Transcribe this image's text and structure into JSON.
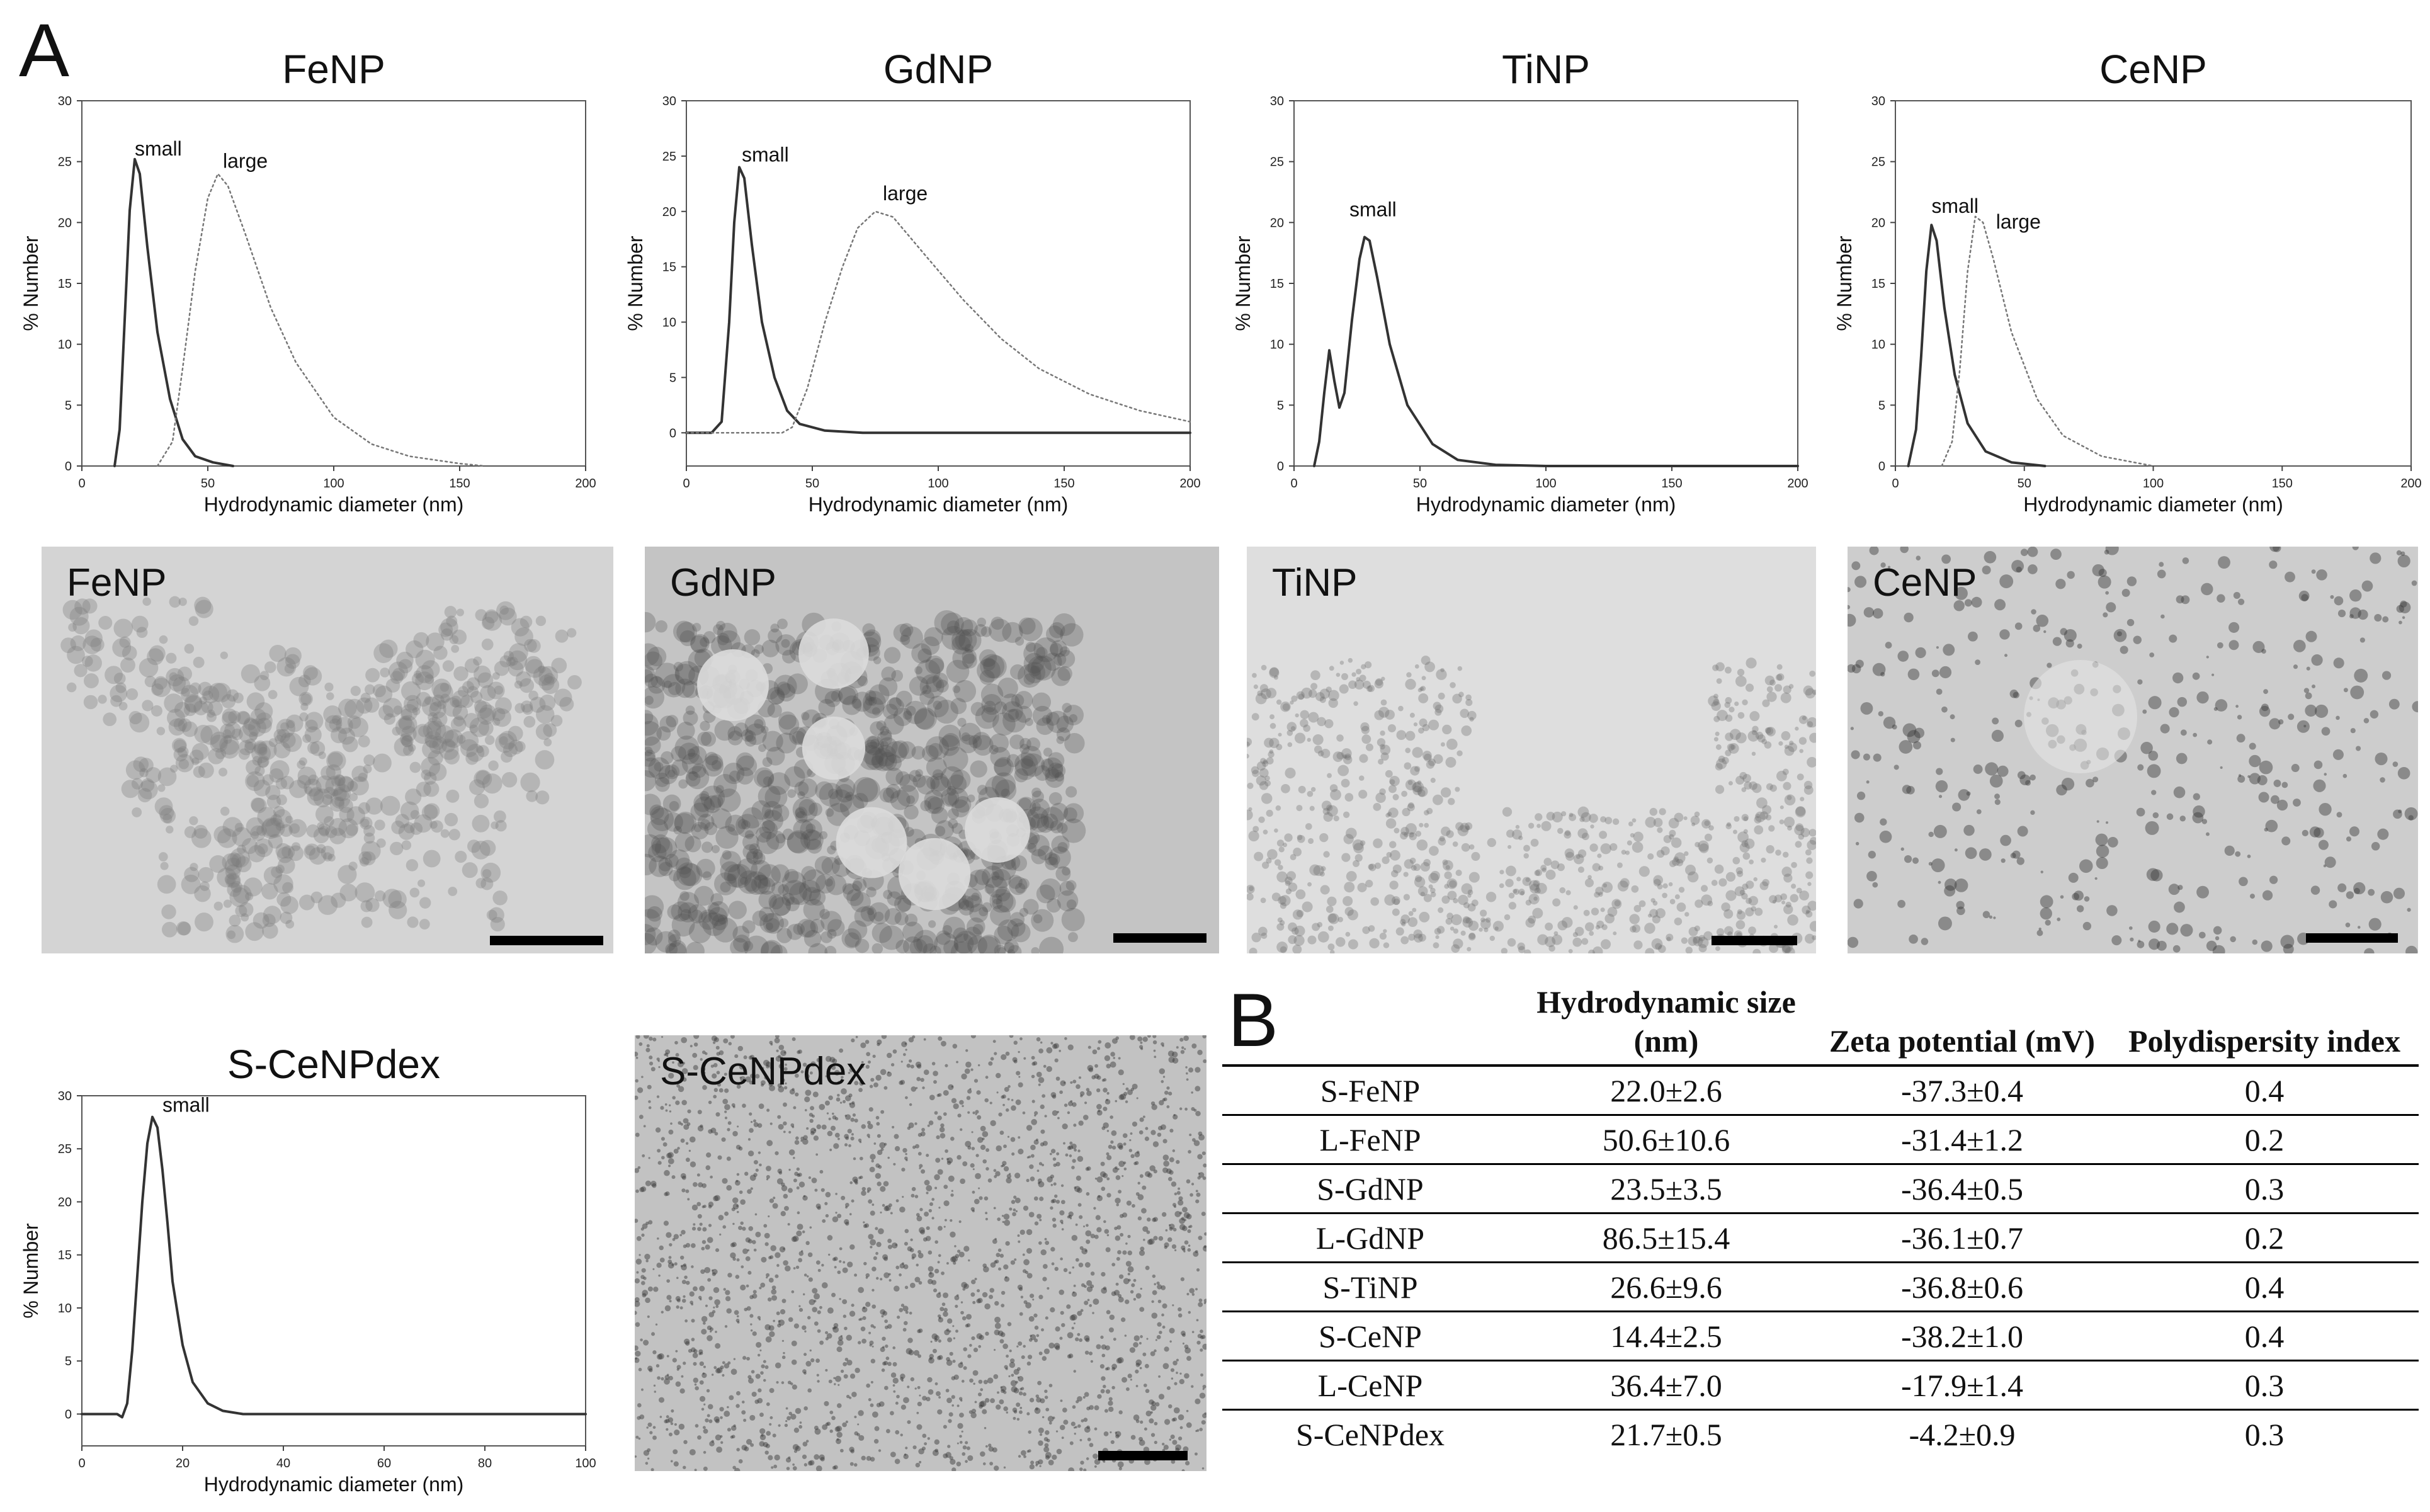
{
  "panel_a_label": "A",
  "panel_b_label": "B",
  "x_axis_label": "Hydrodynamic diameter (nm)",
  "y_axis_label": "% Number",
  "chart_data": [
    {
      "type": "line",
      "title": "FeNP",
      "xlabel": "Hydrodynamic diameter (nm)",
      "ylabel": "% Number",
      "xlim": [
        0,
        200
      ],
      "ylim": [
        0,
        30
      ],
      "x_ticks": [
        0,
        50,
        100,
        150,
        200
      ],
      "y_ticks": [
        0,
        5,
        10,
        15,
        20,
        25,
        30
      ],
      "series": [
        {
          "name": "small",
          "style": "solid",
          "points": [
            [
              13,
              0
            ],
            [
              15,
              3
            ],
            [
              17,
              12
            ],
            [
              19,
              21
            ],
            [
              21,
              25.2
            ],
            [
              23,
              24
            ],
            [
              26,
              18
            ],
            [
              30,
              11
            ],
            [
              35,
              5.5
            ],
            [
              40,
              2.2
            ],
            [
              45,
              0.8
            ],
            [
              52,
              0.3
            ],
            [
              60,
              0
            ]
          ]
        },
        {
          "name": "large",
          "style": "dotted",
          "points": [
            [
              30,
              0
            ],
            [
              36,
              2
            ],
            [
              40,
              8
            ],
            [
              45,
              16
            ],
            [
              50,
              22
            ],
            [
              54,
              24
            ],
            [
              58,
              23
            ],
            [
              65,
              19
            ],
            [
              75,
              13
            ],
            [
              85,
              8.5
            ],
            [
              100,
              4
            ],
            [
              115,
              1.8
            ],
            [
              130,
              0.8
            ],
            [
              150,
              0.2
            ],
            [
              160,
              0
            ]
          ]
        }
      ],
      "annotations": [
        {
          "text": "small",
          "x": 21,
          "y": 25.5
        },
        {
          "text": "large",
          "x": 56,
          "y": 24.5
        }
      ]
    },
    {
      "type": "line",
      "title": "GdNP",
      "xlabel": "Hydrodynamic diameter (nm)",
      "ylabel": "% Number",
      "xlim": [
        0,
        200
      ],
      "ylim": [
        -3,
        30
      ],
      "x_ticks": [
        0,
        50,
        100,
        150,
        200
      ],
      "y_ticks": [
        0,
        5,
        10,
        15,
        20,
        25,
        30
      ],
      "series": [
        {
          "name": "small",
          "style": "solid",
          "points": [
            [
              0,
              0
            ],
            [
              10,
              0
            ],
            [
              14,
              1
            ],
            [
              17,
              10
            ],
            [
              19,
              19
            ],
            [
              21,
              24
            ],
            [
              23,
              23
            ],
            [
              26,
              17
            ],
            [
              30,
              10
            ],
            [
              35,
              5
            ],
            [
              40,
              2
            ],
            [
              45,
              0.8
            ],
            [
              55,
              0.2
            ],
            [
              70,
              0
            ],
            [
              200,
              0
            ]
          ]
        },
        {
          "name": "large",
          "style": "dotted",
          "points": [
            [
              0,
              0
            ],
            [
              38,
              0
            ],
            [
              42,
              0.5
            ],
            [
              48,
              4
            ],
            [
              55,
              10
            ],
            [
              62,
              15
            ],
            [
              68,
              18.5
            ],
            [
              75,
              20
            ],
            [
              82,
              19.5
            ],
            [
              95,
              16
            ],
            [
              110,
              12
            ],
            [
              125,
              8.5
            ],
            [
              140,
              5.8
            ],
            [
              160,
              3.5
            ],
            [
              180,
              2
            ],
            [
              200,
              1
            ]
          ]
        }
      ],
      "annotations": [
        {
          "text": "small",
          "x": 22,
          "y": 24.5
        },
        {
          "text": "large",
          "x": 78,
          "y": 21
        }
      ]
    },
    {
      "type": "line",
      "title": "TiNP",
      "xlabel": "Hydrodynamic diameter (nm)",
      "ylabel": "% Number",
      "xlim": [
        0,
        200
      ],
      "ylim": [
        0,
        30
      ],
      "x_ticks": [
        0,
        50,
        100,
        150,
        200
      ],
      "y_ticks": [
        0,
        5,
        10,
        15,
        20,
        25,
        30
      ],
      "series": [
        {
          "name": "small",
          "style": "solid",
          "points": [
            [
              8,
              0
            ],
            [
              10,
              2
            ],
            [
              12,
              6
            ],
            [
              14,
              9.5
            ],
            [
              16,
              7
            ],
            [
              18,
              4.8
            ],
            [
              20,
              6
            ],
            [
              23,
              12
            ],
            [
              26,
              17
            ],
            [
              28,
              18.8
            ],
            [
              30,
              18.5
            ],
            [
              33,
              15.5
            ],
            [
              38,
              10
            ],
            [
              45,
              5
            ],
            [
              55,
              1.8
            ],
            [
              65,
              0.5
            ],
            [
              80,
              0.1
            ],
            [
              100,
              0
            ],
            [
              200,
              0
            ]
          ]
        }
      ],
      "annotations": [
        {
          "text": "small",
          "x": 22,
          "y": 20.5
        }
      ]
    },
    {
      "type": "line",
      "title": "CeNP",
      "xlabel": "Hydrodynamic diameter (nm)",
      "ylabel": "% Number",
      "xlim": [
        0,
        200
      ],
      "ylim": [
        0,
        30
      ],
      "x_ticks": [
        0,
        50,
        100,
        150,
        200
      ],
      "y_ticks": [
        0,
        5,
        10,
        15,
        20,
        25,
        30
      ],
      "series": [
        {
          "name": "small",
          "style": "solid",
          "points": [
            [
              5,
              0
            ],
            [
              8,
              3
            ],
            [
              10,
              9
            ],
            [
              12,
              16
            ],
            [
              14,
              19.8
            ],
            [
              16,
              18.5
            ],
            [
              19,
              13
            ],
            [
              23,
              7.5
            ],
            [
              28,
              3.5
            ],
            [
              35,
              1.2
            ],
            [
              45,
              0.3
            ],
            [
              58,
              0
            ]
          ]
        },
        {
          "name": "large",
          "style": "dotted",
          "points": [
            [
              18,
              0
            ],
            [
              22,
              2
            ],
            [
              25,
              8
            ],
            [
              28,
              16
            ],
            [
              31,
              20.5
            ],
            [
              34,
              20
            ],
            [
              38,
              17
            ],
            [
              45,
              11
            ],
            [
              55,
              5.5
            ],
            [
              65,
              2.5
            ],
            [
              80,
              0.8
            ],
            [
              100,
              0
            ]
          ]
        }
      ],
      "annotations": [
        {
          "text": "small",
          "x": 14,
          "y": 20.8
        },
        {
          "text": "large",
          "x": 39,
          "y": 19.5
        }
      ]
    },
    {
      "type": "line",
      "title": "S-CeNPdex",
      "xlabel": "Hydrodynamic diameter (nm)",
      "ylabel": "% Number",
      "xlim": [
        0,
        100
      ],
      "ylim": [
        -3,
        30
      ],
      "x_ticks": [
        0,
        20,
        40,
        60,
        80,
        100
      ],
      "y_ticks": [
        0,
        5,
        10,
        15,
        20,
        25,
        30
      ],
      "series": [
        {
          "name": "small",
          "style": "solid",
          "points": [
            [
              0,
              0
            ],
            [
              7,
              0
            ],
            [
              8,
              -0.3
            ],
            [
              9,
              1
            ],
            [
              10,
              6
            ],
            [
              11,
              13
            ],
            [
              12,
              20
            ],
            [
              13,
              25.5
            ],
            [
              14,
              28
            ],
            [
              15,
              27
            ],
            [
              16,
              23
            ],
            [
              17,
              18
            ],
            [
              18,
              12.5
            ],
            [
              20,
              6.5
            ],
            [
              22,
              3
            ],
            [
              25,
              1
            ],
            [
              28,
              0.3
            ],
            [
              32,
              0
            ],
            [
              100,
              0
            ]
          ]
        }
      ],
      "annotations": [
        {
          "text": "small",
          "x": 16,
          "y": 28.5
        }
      ]
    }
  ],
  "tem_images": [
    {
      "label": "FeNP"
    },
    {
      "label": "GdNP"
    },
    {
      "label": "TiNP"
    },
    {
      "label": "CeNP"
    },
    {
      "label": "S-CeNPdex"
    }
  ],
  "table": {
    "headers": [
      "",
      "Hydrodynamic size (nm)",
      "Zeta potential (mV)",
      "Polydispersity index"
    ],
    "rows": [
      [
        "S-FeNP",
        "22.0±2.6",
        "-37.3±0.4",
        "0.4"
      ],
      [
        "L-FeNP",
        "50.6±10.6",
        "-31.4±1.2",
        "0.2"
      ],
      [
        "S-GdNP",
        "23.5±3.5",
        "-36.4±0.5",
        "0.3"
      ],
      [
        "L-GdNP",
        "86.5±15.4",
        "-36.1±0.7",
        "0.2"
      ],
      [
        "S-TiNP",
        "26.6±9.6",
        "-36.8±0.6",
        "0.4"
      ],
      [
        "S-CeNP",
        "14.4±2.5",
        "-38.2±1.0",
        "0.4"
      ],
      [
        "L-CeNP",
        "36.4±7.0",
        "-17.9±1.4",
        "0.3"
      ],
      [
        "S-CeNPdex",
        "21.7±0.5",
        "-4.2±0.9",
        "0.3"
      ]
    ]
  }
}
